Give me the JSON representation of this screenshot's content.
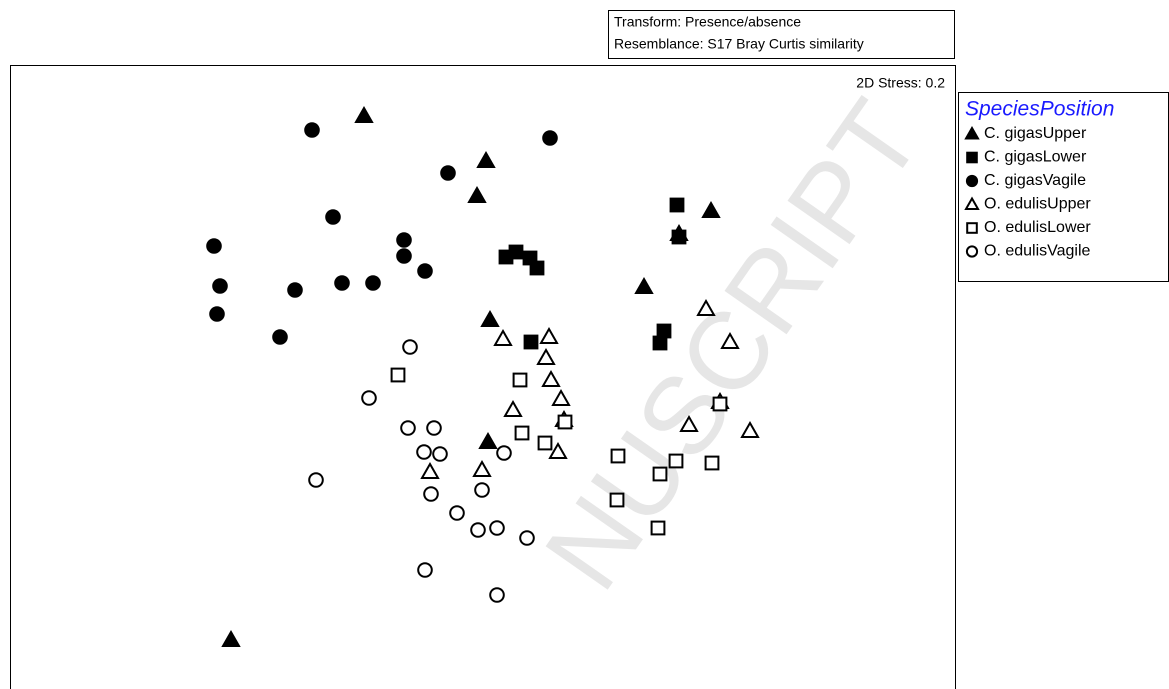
{
  "chart_data": {
    "type": "scatter",
    "annotations": [
      "Transform: Presence/absence",
      "Resemblance: S17 Bray Curtis similarity",
      "2D Stress: 0.2"
    ],
    "watermark": "NUSCRIPT",
    "legend_title": "SpeciesPosition",
    "legend": "outside right",
    "xlim": [
      0,
      945
    ],
    "ylim": [
      0,
      624
    ],
    "series": [
      {
        "name": "C. gigasUpper",
        "color": "#000000",
        "marker": "triangle",
        "filled": true,
        "x": [
          354,
          476,
          467,
          701,
          634,
          480,
          478,
          221,
          669
        ],
        "y": [
          573,
          528,
          493,
          478,
          402,
          369,
          247,
          49,
          455
        ]
      },
      {
        "name": "C. gigasLower",
        "color": "#000000",
        "marker": "square",
        "filled": true,
        "x": [
          667,
          669,
          496,
          506,
          520,
          527,
          521,
          654,
          650
        ],
        "y": [
          484,
          452,
          432,
          437,
          431,
          421,
          347,
          358,
          346
        ]
      },
      {
        "name": "C. gigasVagile",
        "color": "#000000",
        "marker": "circle",
        "filled": true,
        "x": [
          302,
          540,
          438,
          323,
          204,
          394,
          394,
          415,
          210,
          285,
          332,
          363,
          207,
          270
        ],
        "y": [
          559,
          551,
          516,
          472,
          443,
          449,
          433,
          418,
          403,
          399,
          406,
          406,
          375,
          352
        ]
      },
      {
        "name": "O. edulisUpper",
        "color": "#000000",
        "marker": "triangle",
        "filled": false,
        "x": [
          696,
          493,
          539,
          720,
          536,
          541,
          551,
          503,
          554,
          710,
          679,
          740,
          548,
          420,
          472
        ],
        "y": [
          380,
          350,
          352,
          347,
          331,
          309,
          290,
          279,
          269,
          287,
          264,
          258,
          237,
          217,
          219
        ]
      },
      {
        "name": "O. edulisLower",
        "color": "#000000",
        "marker": "square",
        "filled": false,
        "x": [
          388,
          510,
          555,
          512,
          535,
          608,
          666,
          650,
          702,
          607,
          648,
          710
        ],
        "y": [
          314,
          309,
          267,
          256,
          246,
          233,
          228,
          215,
          226,
          189,
          161,
          285
        ]
      },
      {
        "name": "O. edulisVagile",
        "color": "#000000",
        "marker": "circle",
        "filled": false,
        "x": [
          400,
          359,
          398,
          424,
          414,
          430,
          494,
          306,
          421,
          472,
          447,
          468,
          487,
          517,
          415,
          487
        ],
        "y": [
          342,
          291,
          261,
          261,
          237,
          235,
          236,
          209,
          195,
          199,
          176,
          159,
          161,
          151,
          119,
          94
        ]
      }
    ]
  }
}
